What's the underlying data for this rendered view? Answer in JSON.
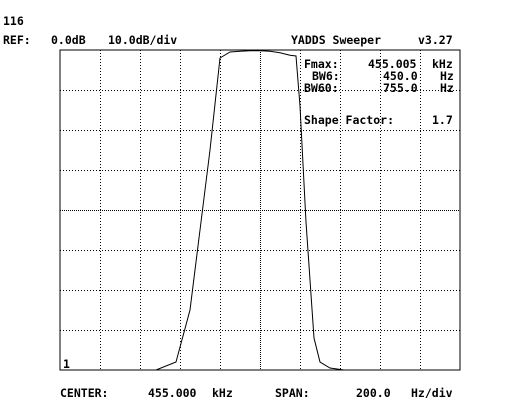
{
  "header": {
    "counter": "116",
    "ref_label": "REF:",
    "ref_value": "0.0dB",
    "scale": "10.0dB/div",
    "app_title": "YADDS Sweeper",
    "version": "v3.27"
  },
  "readout": {
    "fmax_label": "Fmax:",
    "fmax_value": "455.005",
    "fmax_unit": "kHz",
    "bw6_label": "BW6:",
    "bw6_value": "450.0",
    "bw6_unit": "Hz",
    "bw60_label": "BW60:",
    "bw60_value": "755.0",
    "bw60_unit": "Hz",
    "shape_label": "Shape Factor:",
    "shape_value": "1.7"
  },
  "marker_label": "1",
  "footer": {
    "center_label": "CENTER:",
    "center_value": "455.000",
    "center_unit": "kHz",
    "span_label": "SPAN:",
    "span_value": "200.0",
    "span_unit": "Hz/div"
  },
  "colors": {
    "background": "#ffffff",
    "foreground": "#000000"
  },
  "chart_data": {
    "type": "line",
    "x_unit": "Hz offset from center",
    "y_unit": "dB",
    "xlim": [
      -1000,
      1000
    ],
    "ylim": [
      -80,
      0
    ],
    "grid": true,
    "x": [
      -1000,
      -520,
      -420,
      -350,
      -300,
      -250,
      -200,
      -150,
      -100,
      -50,
      0,
      50,
      100,
      150,
      180,
      200,
      230,
      270,
      300,
      350,
      420,
      520,
      1000
    ],
    "y": [
      -80,
      -80,
      -78,
      -65,
      -45,
      -25,
      -2,
      -0.5,
      -0.3,
      -0.2,
      -0.2,
      -0.3,
      -0.7,
      -1.3,
      -1.5,
      -14,
      -43,
      -72,
      -78,
      -79.5,
      -80,
      -80,
      -80
    ]
  }
}
